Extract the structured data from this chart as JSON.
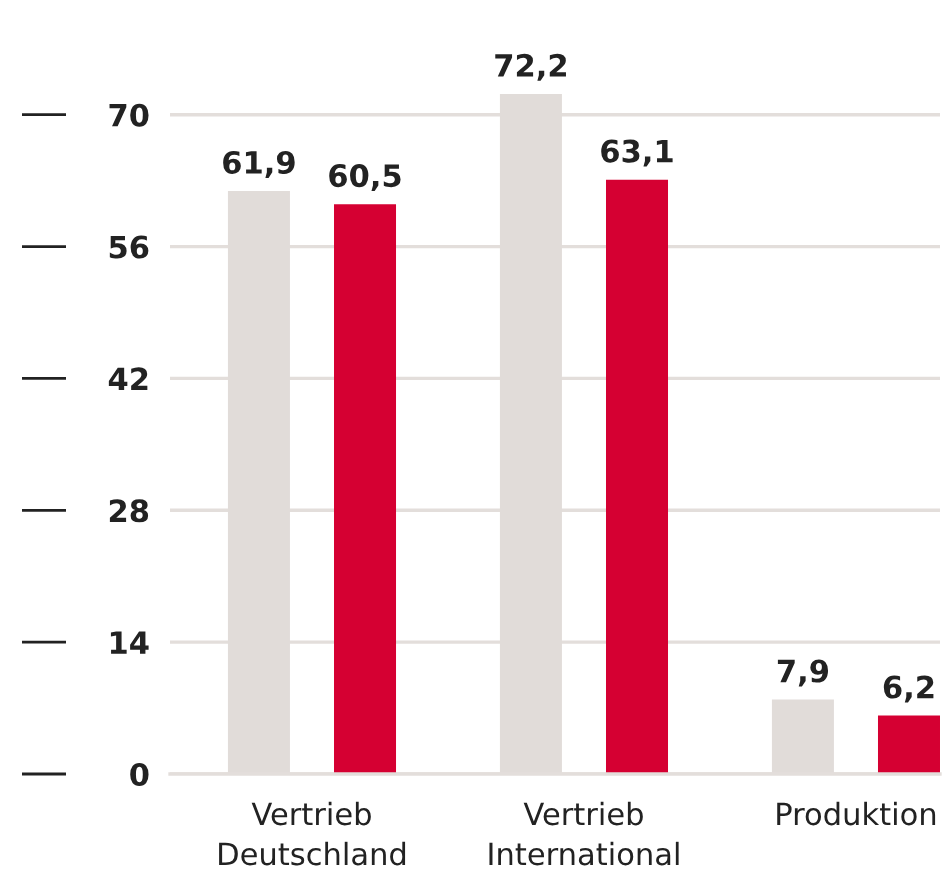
{
  "chart_data": {
    "type": "bar",
    "categories": [
      "Vertrieb\nDeutschland",
      "Vertrieb\nInternational",
      "Produktion"
    ],
    "series": [
      {
        "color": "#e1dcd9",
        "values": [
          61.9,
          72.2,
          7.9
        ],
        "value_labels": [
          "61,9",
          "72,2",
          "7,9"
        ]
      },
      {
        "color": "#d50032",
        "values": [
          60.5,
          63.1,
          6.2
        ],
        "value_labels": [
          "60,5",
          "63,1",
          "6,2"
        ]
      }
    ],
    "ylim": [
      0,
      72.2
    ],
    "yticks": [
      0,
      14,
      28,
      42,
      56,
      70
    ],
    "grid": "y"
  }
}
